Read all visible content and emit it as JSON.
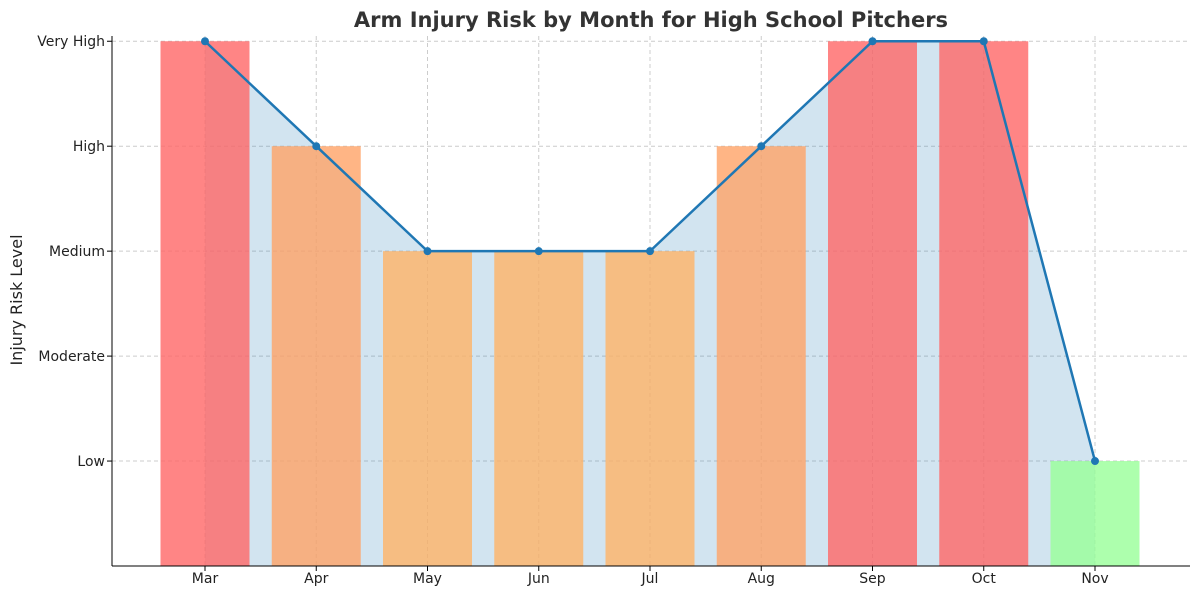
{
  "chart_data": {
    "type": "bar",
    "title": "Arm Injury Risk by Month for High School Pitchers",
    "xlabel": "",
    "ylabel": "Injury Risk Level",
    "categories": [
      "Mar",
      "Apr",
      "May",
      "Jun",
      "Jul",
      "Aug",
      "Sep",
      "Oct",
      "Nov"
    ],
    "values": [
      5,
      4,
      3,
      3,
      3,
      4,
      5,
      5,
      1
    ],
    "risk_levels": [
      "Low",
      "Moderate",
      "Medium",
      "High",
      "Very High"
    ],
    "y_ticks": [
      1,
      2,
      3,
      4,
      5
    ],
    "ylim": [
      0,
      5.05
    ],
    "bar_colors": [
      "#ff6666",
      "#ffa366",
      "#ffb366",
      "#ffb366",
      "#ffb366",
      "#ffa366",
      "#ff6666",
      "#ff6666",
      "#99ff99"
    ],
    "bar_alpha": 0.8,
    "line_color": "#1f77b4",
    "fill_color": "#1f77b4",
    "fill_alpha": 0.2,
    "grid": true
  }
}
